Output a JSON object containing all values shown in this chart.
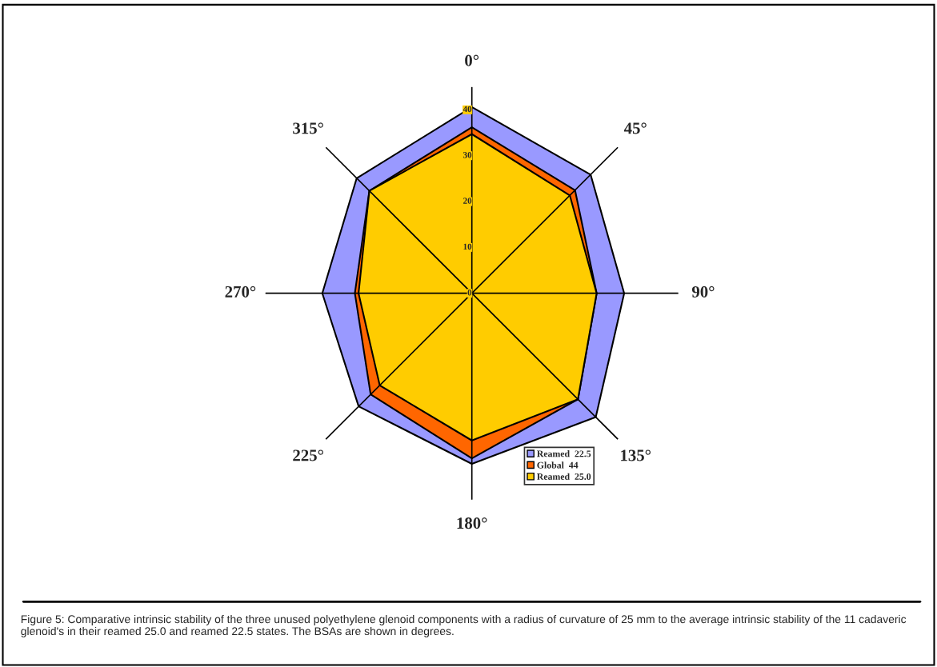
{
  "chart_data": {
    "type": "radar",
    "categories": [
      "0°",
      "45°",
      "90°",
      "135°",
      "180°",
      "225°",
      "270°",
      "315°"
    ],
    "series": [
      {
        "name": "Reamed  22.5",
        "color": "#9999ff",
        "values": [
          40.6,
          36.6,
          33.2,
          38.2,
          37.2,
          34.9,
          32.6,
          35.5
        ]
      },
      {
        "name": "Global  44",
        "color": "#ff6600",
        "values": [
          36.2,
          31.8,
          27.2,
          32.7,
          36.0,
          31.2,
          25.5,
          31.6
        ]
      },
      {
        "name": "Reamed  25.0",
        "color": "#ffcc00",
        "values": [
          34.7,
          30.2,
          27.2,
          32.7,
          32.1,
          28.4,
          24.7,
          31.6
        ]
      }
    ],
    "ylim": [
      0,
      45
    ],
    "yticks": [
      0,
      10,
      20,
      30,
      40
    ],
    "grid": "x",
    "legend": "bottom right",
    "annotations": [
      "Figure 5: Comparative intrinsic stability of the three unused polyethylene glenoid components with a radius of curvature of 25 mm to the average intrinsic stability of the 11 cadaveric glenoid's in their reamed 25.0 and reamed 22.5 states. The BSAs are shown in degrees."
    ]
  }
}
